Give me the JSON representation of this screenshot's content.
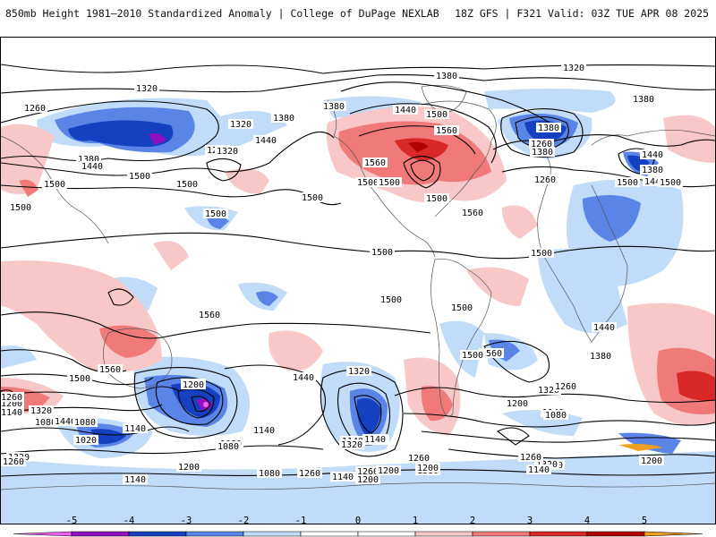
{
  "header": {
    "title_left": "850mb Height 1981–2010 Standardized Anomaly | College of DuPage NEXLAB",
    "title_right": "18Z GFS | F321 Valid: 03Z TUE APR 08 2025"
  },
  "colors": {
    "neg5": "#f060f0",
    "neg4": "#9010c0",
    "neg3": "#1540c0",
    "neg2": "#5a85e6",
    "neg1": "#c0dcf8",
    "pos1": "#f8c8c8",
    "pos2": "#f07a7a",
    "pos3": "#d82828",
    "pos4": "#b00000",
    "pos5": "#f0a020",
    "contour": "#000000",
    "coast": "#555555"
  },
  "colorbar": {
    "ticks": [
      "-5",
      "-4",
      "-3",
      "-2",
      "-1",
      "0",
      "1",
      "2",
      "3",
      "4",
      "5"
    ]
  },
  "contour_labels": [
    "1320",
    "1260",
    "1380",
    "1440",
    "1500",
    "1320",
    "1260",
    "1380",
    "1440",
    "1320",
    "1380",
    "1500",
    "1380",
    "1440",
    "1500",
    "1560",
    "1560",
    "1500",
    "1500",
    "1380",
    "1260",
    "1380",
    "1260",
    "1320",
    "1380",
    "1440",
    "1500",
    "1380",
    "1440",
    "1500",
    "1500",
    "1500",
    "1500",
    "1500",
    "1500",
    "1500",
    "1500",
    "1560",
    "1500",
    "1560",
    "1500",
    "1560",
    "1500",
    "1440",
    "1380",
    "1320",
    "1260",
    "1200",
    "1140",
    "1080",
    "1020",
    "1200",
    "1140",
    "1080",
    "1260",
    "1320",
    "1440",
    "1500",
    "1560",
    "1440",
    "1320",
    "1260",
    "1200",
    "1140",
    "1080",
    "1020",
    "1080",
    "1140",
    "1320",
    "1260",
    "1140",
    "1200",
    "1080",
    "1140",
    "1320",
    "1260",
    "1200",
    "1140",
    "1260",
    "1200",
    "1080",
    "1260",
    "1380",
    "1140",
    "1080",
    "1320",
    "1260",
    "1140",
    "1200",
    "1200"
  ]
}
